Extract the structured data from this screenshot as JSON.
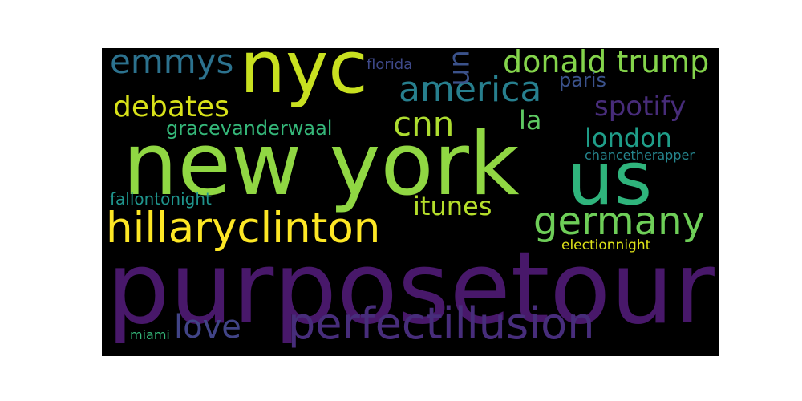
{
  "cloud": {
    "background": "#000000",
    "words": {
      "purposetour": {
        "text": "purposetour",
        "color": "#48186a"
      },
      "new_york": {
        "text": "new york",
        "color": "#90d743"
      },
      "nyc": {
        "text": "nyc",
        "color": "#c8e020"
      },
      "us": {
        "text": "us",
        "color": "#2fb47c"
      },
      "perfectillusion": {
        "text": "perfectillusion",
        "color": "#472d7b"
      },
      "hillaryclinton": {
        "text": "hillaryclinton",
        "color": "#fde725"
      },
      "germany": {
        "text": "germany",
        "color": "#6ece58"
      },
      "america": {
        "text": "america",
        "color": "#277f8e"
      },
      "emmys": {
        "text": "emmys",
        "color": "#2c728e"
      },
      "donald_trump": {
        "text": "donald trump",
        "color": "#84d44b"
      },
      "cnn": {
        "text": "cnn",
        "color": "#addc30"
      },
      "love": {
        "text": "love",
        "color": "#414487"
      },
      "debates": {
        "text": "debates",
        "color": "#d8e219"
      },
      "spotify": {
        "text": "spotify",
        "color": "#472c7a"
      },
      "london": {
        "text": "london",
        "color": "#1f9e89"
      },
      "itunes": {
        "text": "itunes",
        "color": "#b5de2b"
      },
      "la": {
        "text": "la",
        "color": "#5ec962"
      },
      "gracevanderwaal": {
        "text": "gracevanderwaal",
        "color": "#35b779"
      },
      "paris": {
        "text": "paris",
        "color": "#3b528b"
      },
      "fallontonight": {
        "text": "fallontonight",
        "color": "#1f948c"
      },
      "florida": {
        "text": "florida",
        "color": "#3e4989"
      },
      "chancetherapper": {
        "text": "chancetherapper",
        "color": "#25858e"
      },
      "electionnight": {
        "text": "electionnight",
        "color": "#dfe318"
      },
      "miami": {
        "text": "miami",
        "color": "#35b779"
      },
      "un": {
        "text": "un",
        "color": "#3b528b"
      }
    }
  }
}
